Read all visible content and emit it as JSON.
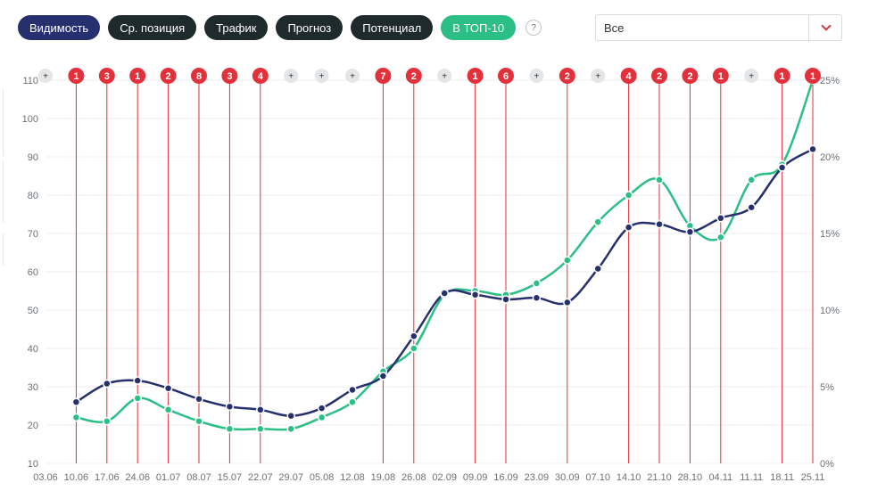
{
  "toolbar": {
    "buttons": [
      {
        "label": "Видимость",
        "style": "navy"
      },
      {
        "label": "Ср. позиция",
        "style": "dark"
      },
      {
        "label": "Трафик",
        "style": "dark"
      },
      {
        "label": "Прогноз",
        "style": "dark"
      },
      {
        "label": "Потенциал",
        "style": "dark"
      },
      {
        "label": "В ТОП-10",
        "style": "green"
      }
    ],
    "help_label": "?"
  },
  "filter": {
    "selected": "Все"
  },
  "colors": {
    "navy": "#27306e",
    "green": "#2bbf86",
    "marker": "#e2313b",
    "plus_bg": "#e3e5e7"
  },
  "chart_data": {
    "type": "line",
    "x": [
      "03.06",
      "10.06",
      "17.06",
      "24.06",
      "01.07",
      "08.07",
      "15.07",
      "22.07",
      "29.07",
      "05.08",
      "12.08",
      "19.08",
      "26.08",
      "02.09",
      "09.09",
      "16.09",
      "23.09",
      "30.09",
      "07.10",
      "14.10",
      "21.10",
      "28.10",
      "04.11",
      "11.11",
      "18.11",
      "25.11"
    ],
    "ylim": [
      10,
      110
    ],
    "y_ticks": [
      "10",
      "20",
      "30",
      "40",
      "50",
      "60",
      "70",
      "80",
      "90",
      "100",
      "110"
    ],
    "y2lim": [
      0,
      25
    ],
    "y2_ticks": [
      "0%",
      "5%",
      "10%",
      "15%",
      "20%",
      "25%"
    ],
    "series": [
      {
        "color": "#27306e",
        "axis": "right",
        "values": [
          null,
          4.0,
          5.2,
          5.4,
          4.9,
          4.2,
          3.7,
          3.5,
          3.1,
          3.6,
          4.8,
          5.7,
          8.3,
          11.1,
          11.0,
          10.7,
          10.8,
          10.5,
          12.7,
          15.4,
          15.6,
          15.1,
          16.0,
          16.7,
          19.3,
          20.5
        ]
      },
      {
        "color": "#2bbf86",
        "axis": "left",
        "values": [
          null,
          22,
          21,
          27,
          24,
          21,
          19,
          19,
          19,
          22,
          26,
          34,
          40,
          54,
          55,
          54,
          57,
          63,
          73,
          80,
          84,
          72,
          69,
          84,
          88,
          110
        ]
      }
    ],
    "markers": [
      "+",
      "1",
      "3",
      "1",
      "2",
      "8",
      "3",
      "4",
      "+",
      "+",
      "+",
      "7",
      "2",
      "+",
      "1",
      "6",
      "+",
      "2",
      "+",
      "4",
      "2",
      "2",
      "1",
      "+",
      "1",
      "1"
    ]
  }
}
